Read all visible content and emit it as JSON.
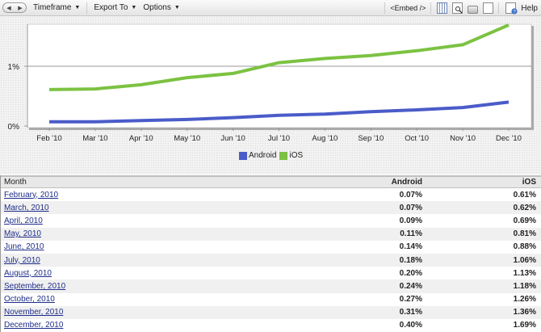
{
  "toolbar": {
    "nav_back": "◀",
    "nav_forward": "▶",
    "menus": [
      {
        "label": "Timeframe",
        "caret": "▼"
      },
      {
        "label": "Export To",
        "caret": "▼"
      },
      {
        "label": "Options",
        "caret": "▼"
      }
    ],
    "embed_label": "<Embed />",
    "icons": [
      "columns-icon",
      "print-preview-icon",
      "print-icon",
      "page-icon"
    ],
    "help_label": "Help"
  },
  "legend": [
    {
      "label": "Android",
      "color": "#4a5cc8"
    },
    {
      "label": "iOS",
      "color": "#7cc242"
    }
  ],
  "table": {
    "headers": {
      "month": "Month",
      "android": "Android",
      "ios": "iOS"
    },
    "rows": [
      {
        "month": "February, 2010",
        "android": "0.07%",
        "ios": "0.61%"
      },
      {
        "month": "March, 2010",
        "android": "0.07%",
        "ios": "0.62%"
      },
      {
        "month": "April, 2010",
        "android": "0.09%",
        "ios": "0.69%"
      },
      {
        "month": "May, 2010",
        "android": "0.11%",
        "ios": "0.81%"
      },
      {
        "month": "June, 2010",
        "android": "0.14%",
        "ios": "0.88%"
      },
      {
        "month": "July, 2010",
        "android": "0.18%",
        "ios": "1.06%"
      },
      {
        "month": "August, 2010",
        "android": "0.20%",
        "ios": "1.13%"
      },
      {
        "month": "September, 2010",
        "android": "0.24%",
        "ios": "1.18%"
      },
      {
        "month": "October, 2010",
        "android": "0.27%",
        "ios": "1.26%"
      },
      {
        "month": "November, 2010",
        "android": "0.31%",
        "ios": "1.36%"
      },
      {
        "month": "December, 2010",
        "android": "0.40%",
        "ios": "1.69%"
      }
    ]
  },
  "chart_data": {
    "type": "line",
    "title": "",
    "xlabel": "",
    "ylabel": "",
    "categories": [
      "Feb '10",
      "Mar '10",
      "Apr '10",
      "May '10",
      "Jun '10",
      "Jul '10",
      "Aug '10",
      "Sep '10",
      "Oct '10",
      "Nov '10",
      "Dec '10"
    ],
    "series": [
      {
        "name": "Android",
        "color": "#4a5cc8",
        "values": [
          0.07,
          0.07,
          0.09,
          0.11,
          0.14,
          0.18,
          0.2,
          0.24,
          0.27,
          0.31,
          0.4
        ]
      },
      {
        "name": "iOS",
        "color": "#7cc242",
        "values": [
          0.61,
          0.62,
          0.69,
          0.81,
          0.88,
          1.06,
          1.13,
          1.18,
          1.26,
          1.36,
          1.69
        ]
      }
    ],
    "yticks": [
      "0%",
      "1%"
    ],
    "ylim": [
      0,
      1.7
    ],
    "grid": true,
    "legend_position": "bottom"
  }
}
